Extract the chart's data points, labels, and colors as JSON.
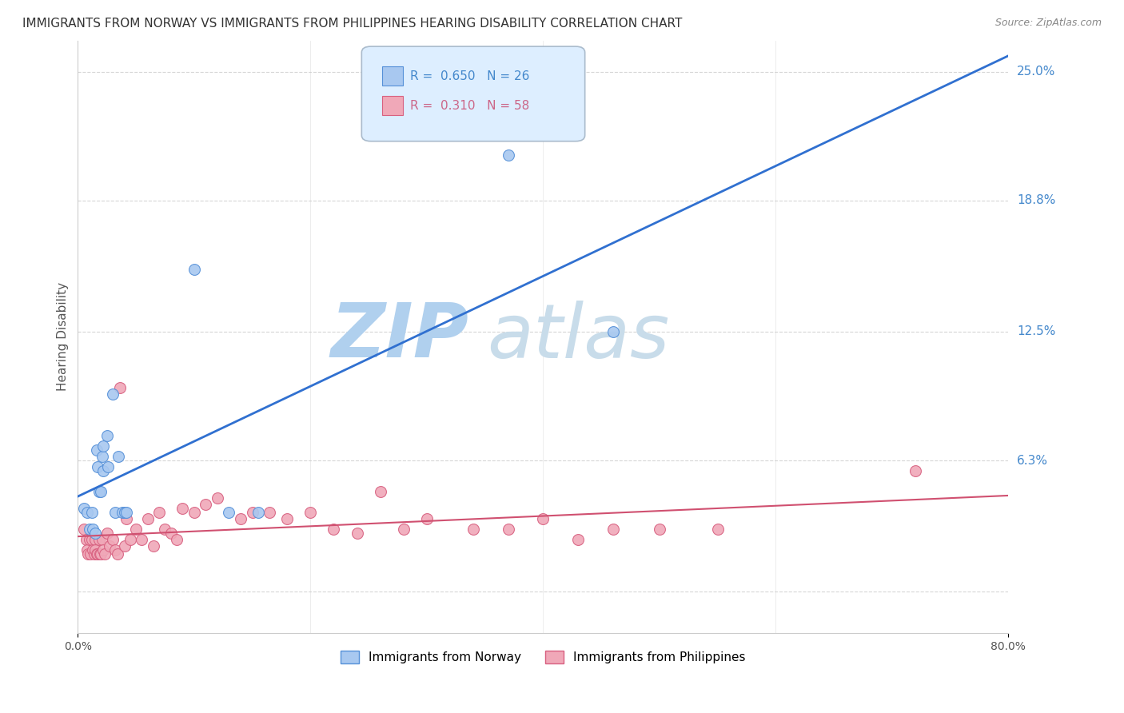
{
  "title": "IMMIGRANTS FROM NORWAY VS IMMIGRANTS FROM PHILIPPINES HEARING DISABILITY CORRELATION CHART",
  "source": "Source: ZipAtlas.com",
  "ylabel": "Hearing Disability",
  "xlim": [
    0,
    0.8
  ],
  "ylim": [
    -0.02,
    0.265
  ],
  "yticks": [
    0.0,
    0.063,
    0.125,
    0.188,
    0.25
  ],
  "ytick_labels": [
    "",
    "6.3%",
    "12.5%",
    "18.8%",
    "25.0%"
  ],
  "norway_color": "#a8c8f0",
  "norway_edge_color": "#5590d8",
  "philippines_color": "#f0a8b8",
  "philippines_edge_color": "#d86080",
  "norway_R": 0.65,
  "norway_N": 26,
  "philippines_R": 0.31,
  "philippines_N": 58,
  "norway_scatter_x": [
    0.005,
    0.008,
    0.01,
    0.012,
    0.013,
    0.015,
    0.016,
    0.017,
    0.018,
    0.02,
    0.021,
    0.022,
    0.022,
    0.025,
    0.026,
    0.03,
    0.032,
    0.035,
    0.038,
    0.04,
    0.042,
    0.1,
    0.13,
    0.155,
    0.37,
    0.46
  ],
  "norway_scatter_y": [
    0.04,
    0.038,
    0.03,
    0.038,
    0.03,
    0.028,
    0.068,
    0.06,
    0.048,
    0.048,
    0.065,
    0.07,
    0.058,
    0.075,
    0.06,
    0.095,
    0.038,
    0.065,
    0.038,
    0.038,
    0.038,
    0.155,
    0.038,
    0.038,
    0.21,
    0.125
  ],
  "philippines_scatter_x": [
    0.005,
    0.007,
    0.008,
    0.009,
    0.01,
    0.011,
    0.012,
    0.013,
    0.014,
    0.015,
    0.015,
    0.016,
    0.017,
    0.018,
    0.019,
    0.02,
    0.021,
    0.022,
    0.023,
    0.025,
    0.027,
    0.03,
    0.032,
    0.034,
    0.036,
    0.04,
    0.042,
    0.045,
    0.05,
    0.055,
    0.06,
    0.065,
    0.07,
    0.075,
    0.08,
    0.085,
    0.09,
    0.1,
    0.11,
    0.12,
    0.14,
    0.15,
    0.165,
    0.18,
    0.2,
    0.22,
    0.24,
    0.26,
    0.28,
    0.3,
    0.34,
    0.37,
    0.4,
    0.43,
    0.46,
    0.5,
    0.55,
    0.72
  ],
  "philippines_scatter_y": [
    0.03,
    0.025,
    0.02,
    0.018,
    0.025,
    0.018,
    0.025,
    0.02,
    0.018,
    0.025,
    0.02,
    0.018,
    0.018,
    0.025,
    0.018,
    0.018,
    0.025,
    0.02,
    0.018,
    0.028,
    0.022,
    0.025,
    0.02,
    0.018,
    0.098,
    0.022,
    0.035,
    0.025,
    0.03,
    0.025,
    0.035,
    0.022,
    0.038,
    0.03,
    0.028,
    0.025,
    0.04,
    0.038,
    0.042,
    0.045,
    0.035,
    0.038,
    0.038,
    0.035,
    0.038,
    0.03,
    0.028,
    0.048,
    0.03,
    0.035,
    0.03,
    0.03,
    0.035,
    0.025,
    0.03,
    0.03,
    0.03,
    0.058
  ],
  "norway_line_color": "#3070d0",
  "philippines_line_color": "#d05070",
  "grid_color": "#cccccc",
  "watermark_zip_color": "#b8d8f0",
  "watermark_atlas_color": "#c8d8e8",
  "background_color": "#ffffff",
  "legend_box_color": "#ddeeff",
  "legend_border_color": "#aabbcc",
  "legend_norway_text_color": "#4488cc",
  "legend_philippines_text_color": "#cc6688",
  "right_tick_color": "#4488cc",
  "title_fontsize": 11,
  "axis_label_fontsize": 11,
  "marker_size": 100
}
